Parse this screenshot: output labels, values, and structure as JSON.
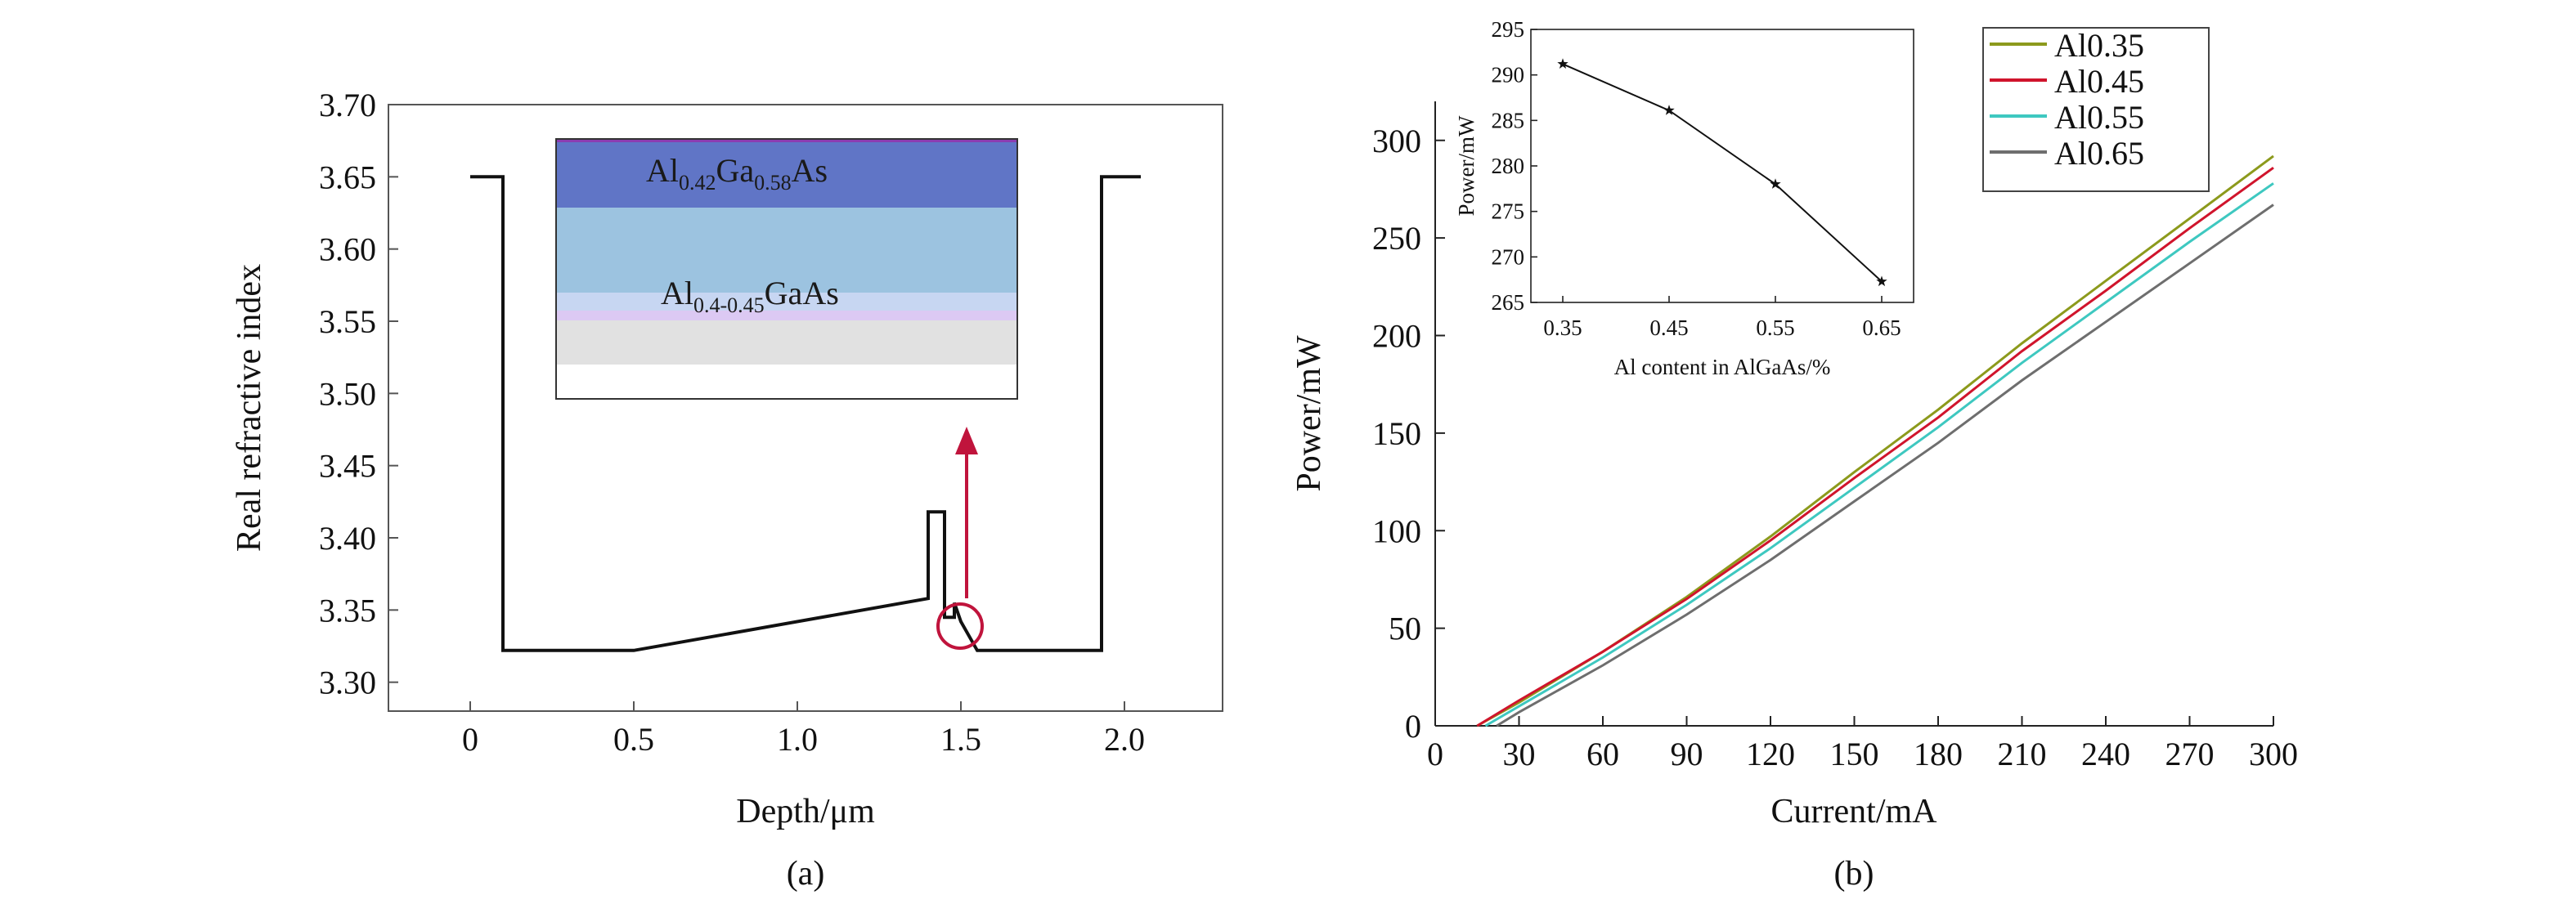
{
  "chart_data": [
    {
      "id": "a",
      "type": "line",
      "panel_label": "(a)",
      "xlabel": "Depth/μm",
      "ylabel": "Real refractive index",
      "xlim": [
        -0.25,
        2.3
      ],
      "ylim": [
        3.28,
        3.7
      ],
      "x_ticks": [
        0,
        0.5,
        1.0,
        1.5,
        2.0
      ],
      "x_tick_labels": [
        "0",
        "0.5",
        "1.0",
        "1.5",
        "2.0"
      ],
      "y_ticks": [
        3.3,
        3.35,
        3.4,
        3.45,
        3.5,
        3.55,
        3.6,
        3.65,
        3.7
      ],
      "y_tick_labels": [
        "3.30",
        "3.35",
        "3.40",
        "3.45",
        "3.50",
        "3.55",
        "3.60",
        "3.65",
        "3.70"
      ],
      "series": [
        {
          "color": "#111111",
          "x": [
            0,
            0.1,
            0.1,
            0.5,
            1.4,
            1.4,
            1.45,
            1.45,
            1.48,
            1.48,
            1.5,
            1.55,
            1.93,
            1.93,
            2.05
          ],
          "y": [
            3.65,
            3.65,
            3.322,
            3.322,
            3.358,
            3.418,
            3.418,
            3.345,
            3.345,
            3.355,
            3.342,
            3.322,
            3.322,
            3.65,
            3.65
          ]
        }
      ],
      "annotations": {
        "circle_center": [
          1.48,
          3.345
        ],
        "arrow_color": "#c0143c",
        "inset_layers": {
          "top": {
            "pre": "Al",
            "sub1": "0.42",
            "mid": "Ga",
            "sub2": "0.58",
            "post": "As"
          },
          "bottom": {
            "pre": "Al",
            "sub1": "0.4-0.45",
            "post": "GaAs"
          }
        }
      }
    },
    {
      "id": "b",
      "type": "line",
      "panel_label": "(b)",
      "xlabel": "Current/mA",
      "ylabel": "Power/mW",
      "xlim": [
        0,
        300
      ],
      "ylim": [
        0,
        320
      ],
      "x_ticks": [
        0,
        30,
        60,
        90,
        120,
        150,
        180,
        210,
        240,
        270,
        300
      ],
      "y_ticks": [
        0,
        50,
        100,
        150,
        200,
        250,
        300
      ],
      "legend": "top-right",
      "series": [
        {
          "name": "Al0.35",
          "color": "#8c9a1c",
          "x": [
            15,
            30,
            60,
            90,
            120,
            150,
            180,
            210,
            240,
            270,
            300
          ],
          "y": [
            0,
            12,
            38,
            66,
            97,
            130,
            162,
            196,
            228,
            260,
            292
          ]
        },
        {
          "name": "Al0.45",
          "color": "#d0142c",
          "x": [
            15,
            30,
            60,
            90,
            120,
            150,
            180,
            210,
            240,
            270,
            300
          ],
          "y": [
            0,
            13,
            38,
            65,
            95,
            127,
            158,
            192,
            223,
            255,
            286
          ]
        },
        {
          "name": "Al0.55",
          "color": "#3ec8c0",
          "x": [
            18,
            30,
            60,
            90,
            120,
            150,
            180,
            210,
            240,
            270,
            300
          ],
          "y": [
            0,
            10,
            35,
            62,
            91,
            122,
            153,
            186,
            217,
            248,
            278
          ]
        },
        {
          "name": "Al0.65",
          "color": "#6e6e6e",
          "x": [
            22,
            30,
            60,
            90,
            120,
            150,
            180,
            210,
            240,
            270,
            300
          ],
          "y": [
            0,
            7,
            31,
            57,
            85,
            115,
            145,
            177,
            207,
            237,
            267
          ]
        }
      ]
    },
    {
      "id": "b-inset",
      "type": "line",
      "xlabel": "Al content in AlGaAs/%",
      "ylabel": "Power/mW",
      "xlim": [
        0.32,
        0.68
      ],
      "ylim": [
        265,
        295
      ],
      "x_ticks": [
        0.35,
        0.45,
        0.55,
        0.65
      ],
      "x_tick_labels": [
        "0.35",
        "0.45",
        "0.55",
        "0.65"
      ],
      "y_ticks": [
        265,
        270,
        275,
        280,
        285,
        290,
        295
      ],
      "series": [
        {
          "color": "#111111",
          "x": [
            0.35,
            0.45,
            0.55,
            0.65
          ],
          "y": [
            291.2,
            286.1,
            278.0,
            267.3
          ]
        }
      ]
    }
  ]
}
